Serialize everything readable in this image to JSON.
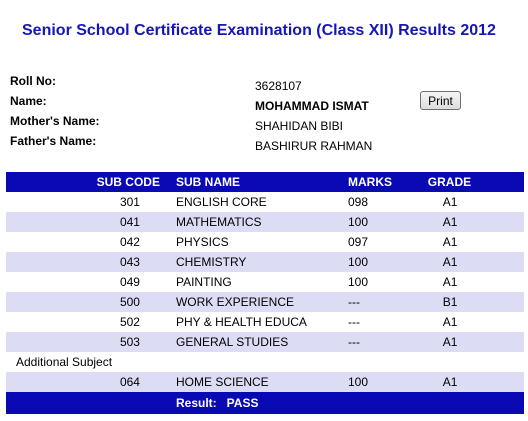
{
  "page": {
    "title": "Senior School Certificate Examination (Class XII) Results 2012"
  },
  "student": {
    "roll_label": "Roll No:",
    "roll_value": "3628107",
    "name_label": "Name:",
    "name_value": "MOHAMMAD ISMAT",
    "mother_label": "Mother's Name:",
    "mother_value": "SHAHIDAN BIBI",
    "father_label": "Father's Name:",
    "father_value": "BASHIRUR RAHMAN"
  },
  "print_button": {
    "label": "Print"
  },
  "table": {
    "headers": {
      "code": "SUB CODE",
      "name": "SUB NAME",
      "marks": "MARKS",
      "grade": "GRADE"
    },
    "rows": [
      {
        "code": "301",
        "name": "ENGLISH CORE",
        "marks": "098",
        "grade": "A1"
      },
      {
        "code": "041",
        "name": "MATHEMATICS",
        "marks": "100",
        "grade": "A1"
      },
      {
        "code": "042",
        "name": "PHYSICS",
        "marks": "097",
        "grade": "A1"
      },
      {
        "code": "043",
        "name": "CHEMISTRY",
        "marks": "100",
        "grade": "A1"
      },
      {
        "code": "049",
        "name": "PAINTING",
        "marks": "100",
        "grade": "A1"
      },
      {
        "code": "500",
        "name": "WORK EXPERIENCE",
        "marks": "---",
        "grade": "B1"
      },
      {
        "code": "502",
        "name": "PHY & HEALTH EDUCA",
        "marks": "---",
        "grade": "A1"
      },
      {
        "code": "503",
        "name": "GENERAL STUDIES",
        "marks": "---",
        "grade": "A1"
      }
    ],
    "additional_label": "Additional Subject",
    "additional_row": {
      "code": "064",
      "name": "HOME SCIENCE",
      "marks": "100",
      "grade": "A1"
    },
    "result_label": "Result:",
    "result_value": "PASS"
  },
  "colors": {
    "title": "#1515b8",
    "header_bg": "#0a0ab4",
    "row_shade": "#dcdcf4"
  }
}
